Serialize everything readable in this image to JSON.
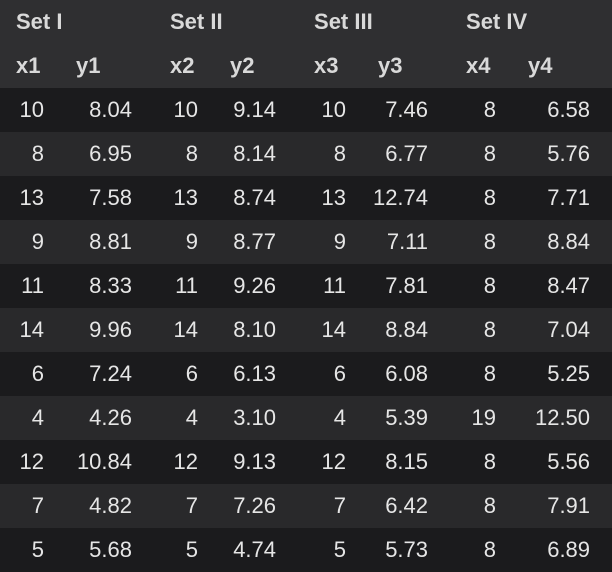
{
  "sets": [
    "Set I",
    "Set II",
    "Set III",
    "Set IV"
  ],
  "columns": [
    "x1",
    "y1",
    "x2",
    "y2",
    "x3",
    "y3",
    "x4",
    "y4"
  ],
  "rows": [
    [
      "10",
      "8.04",
      "10",
      "9.14",
      "10",
      "7.46",
      "8",
      "6.58"
    ],
    [
      "8",
      "6.95",
      "8",
      "8.14",
      "8",
      "6.77",
      "8",
      "5.76"
    ],
    [
      "13",
      "7.58",
      "13",
      "8.74",
      "13",
      "12.74",
      "8",
      "7.71"
    ],
    [
      "9",
      "8.81",
      "9",
      "8.77",
      "9",
      "7.11",
      "8",
      "8.84"
    ],
    [
      "11",
      "8.33",
      "11",
      "9.26",
      "11",
      "7.81",
      "8",
      "8.47"
    ],
    [
      "14",
      "9.96",
      "14",
      "8.10",
      "14",
      "8.84",
      "8",
      "7.04"
    ],
    [
      "6",
      "7.24",
      "6",
      "6.13",
      "6",
      "6.08",
      "8",
      "5.25"
    ],
    [
      "4",
      "4.26",
      "4",
      "3.10",
      "4",
      "5.39",
      "19",
      "12.50"
    ],
    [
      "12",
      "10.84",
      "12",
      "9.13",
      "12",
      "8.15",
      "8",
      "5.56"
    ],
    [
      "7",
      "4.82",
      "7",
      "7.26",
      "7",
      "6.42",
      "8",
      "7.91"
    ],
    [
      "5",
      "5.68",
      "5",
      "4.74",
      "5",
      "5.73",
      "8",
      "6.89"
    ]
  ]
}
